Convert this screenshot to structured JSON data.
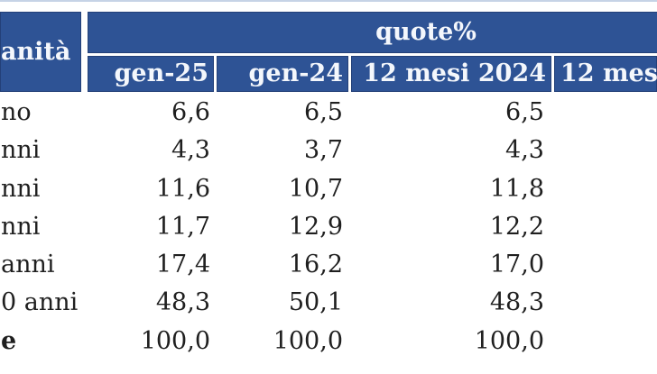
{
  "table": {
    "corner_header_fragment": "anità",
    "group_header": "quote%",
    "columns": [
      "gen-25",
      "gen-24",
      "12 mesi 2024",
      "12 mes"
    ],
    "rows": [
      {
        "label": "no",
        "values": [
          "6,6",
          "6,5",
          "6,5",
          ""
        ]
      },
      {
        "label": "nni",
        "values": [
          "4,3",
          "3,7",
          "4,3",
          ""
        ]
      },
      {
        "label": "nni",
        "values": [
          "11,6",
          "10,7",
          "11,8",
          ""
        ]
      },
      {
        "label": "nni",
        "values": [
          "11,7",
          "12,9",
          "12,2",
          ""
        ]
      },
      {
        "label": "anni",
        "values": [
          "17,4",
          "16,2",
          "17,0",
          ""
        ]
      },
      {
        "label": "0 anni",
        "values": [
          "48,3",
          "50,1",
          "48,3",
          ""
        ]
      },
      {
        "label": "e",
        "values": [
          "100,0",
          "100,0",
          "100,0",
          ""
        ],
        "bold_label": true
      }
    ],
    "colors": {
      "header_bg": "#2e5395",
      "header_text": "#f4f7fc",
      "body_text": "#1f1f1f",
      "top_rule": "#c6d3e6",
      "cell_separator": "#ffffff"
    }
  }
}
